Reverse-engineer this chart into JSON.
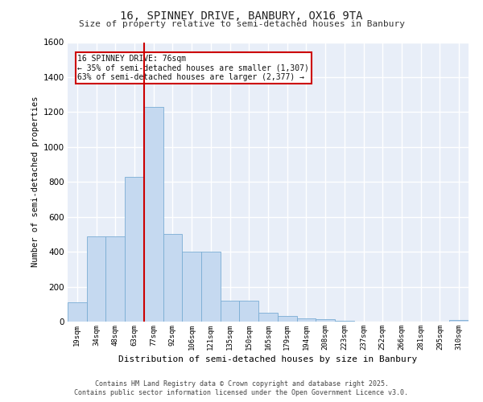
{
  "title1": "16, SPINNEY DRIVE, BANBURY, OX16 9TA",
  "title2": "Size of property relative to semi-detached houses in Banbury",
  "xlabel": "Distribution of semi-detached houses by size in Banbury",
  "ylabel": "Number of semi-detached properties",
  "bins": [
    "19sqm",
    "34sqm",
    "48sqm",
    "63sqm",
    "77sqm",
    "92sqm",
    "106sqm",
    "121sqm",
    "135sqm",
    "150sqm",
    "165sqm",
    "179sqm",
    "194sqm",
    "208sqm",
    "223sqm",
    "237sqm",
    "252sqm",
    "266sqm",
    "281sqm",
    "295sqm",
    "310sqm"
  ],
  "counts": [
    110,
    490,
    490,
    830,
    1230,
    500,
    400,
    400,
    120,
    120,
    50,
    30,
    20,
    15,
    5,
    0,
    0,
    0,
    0,
    0,
    10
  ],
  "bar_color": "#c5d9f0",
  "bar_edge_color": "#7aadd4",
  "vline_color": "#cc0000",
  "annotation_title": "16 SPINNEY DRIVE: 76sqm",
  "annotation_line1": "← 35% of semi-detached houses are smaller (1,307)",
  "annotation_line2": "63% of semi-detached houses are larger (2,377) →",
  "annotation_box_color": "#cc0000",
  "ylim": [
    0,
    1600
  ],
  "yticks": [
    0,
    200,
    400,
    600,
    800,
    1000,
    1200,
    1400,
    1600
  ],
  "footer1": "Contains HM Land Registry data © Crown copyright and database right 2025.",
  "footer2": "Contains public sector information licensed under the Open Government Licence v3.0.",
  "background_color": "#e8eef8",
  "grid_color": "#ffffff"
}
